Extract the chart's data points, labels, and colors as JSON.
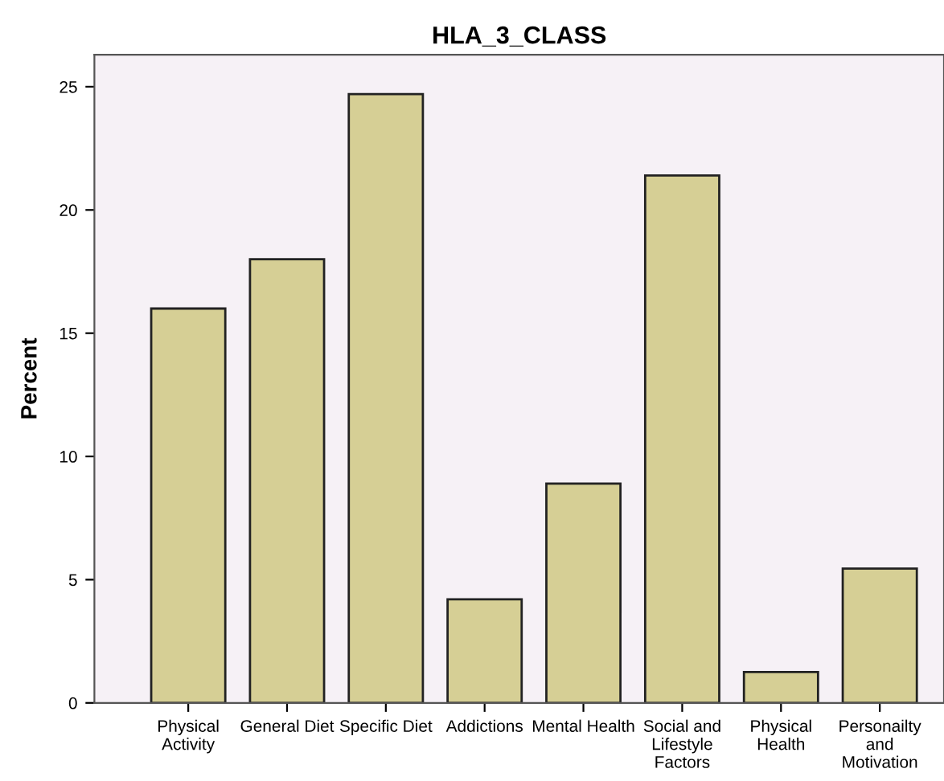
{
  "chart_data": {
    "type": "bar",
    "title": "HLA_3_CLASS",
    "ylabel": "Percent",
    "categories": [
      "Physical\nActivity",
      "General Diet",
      "Specific Diet",
      "Addictions",
      "Mental Health",
      "Social and\nLifestyle\nFactors",
      "Physical\nHealth",
      "Personailty\nand\nMotivation"
    ],
    "values": [
      16.0,
      18.0,
      24.7,
      4.2,
      8.9,
      21.4,
      1.25,
      5.45
    ],
    "color": "#d6cf95",
    "ylim": [
      0,
      26.3
    ],
    "yticks": [
      0,
      5,
      10,
      15,
      20,
      25
    ],
    "grid": false,
    "legend": false
  }
}
